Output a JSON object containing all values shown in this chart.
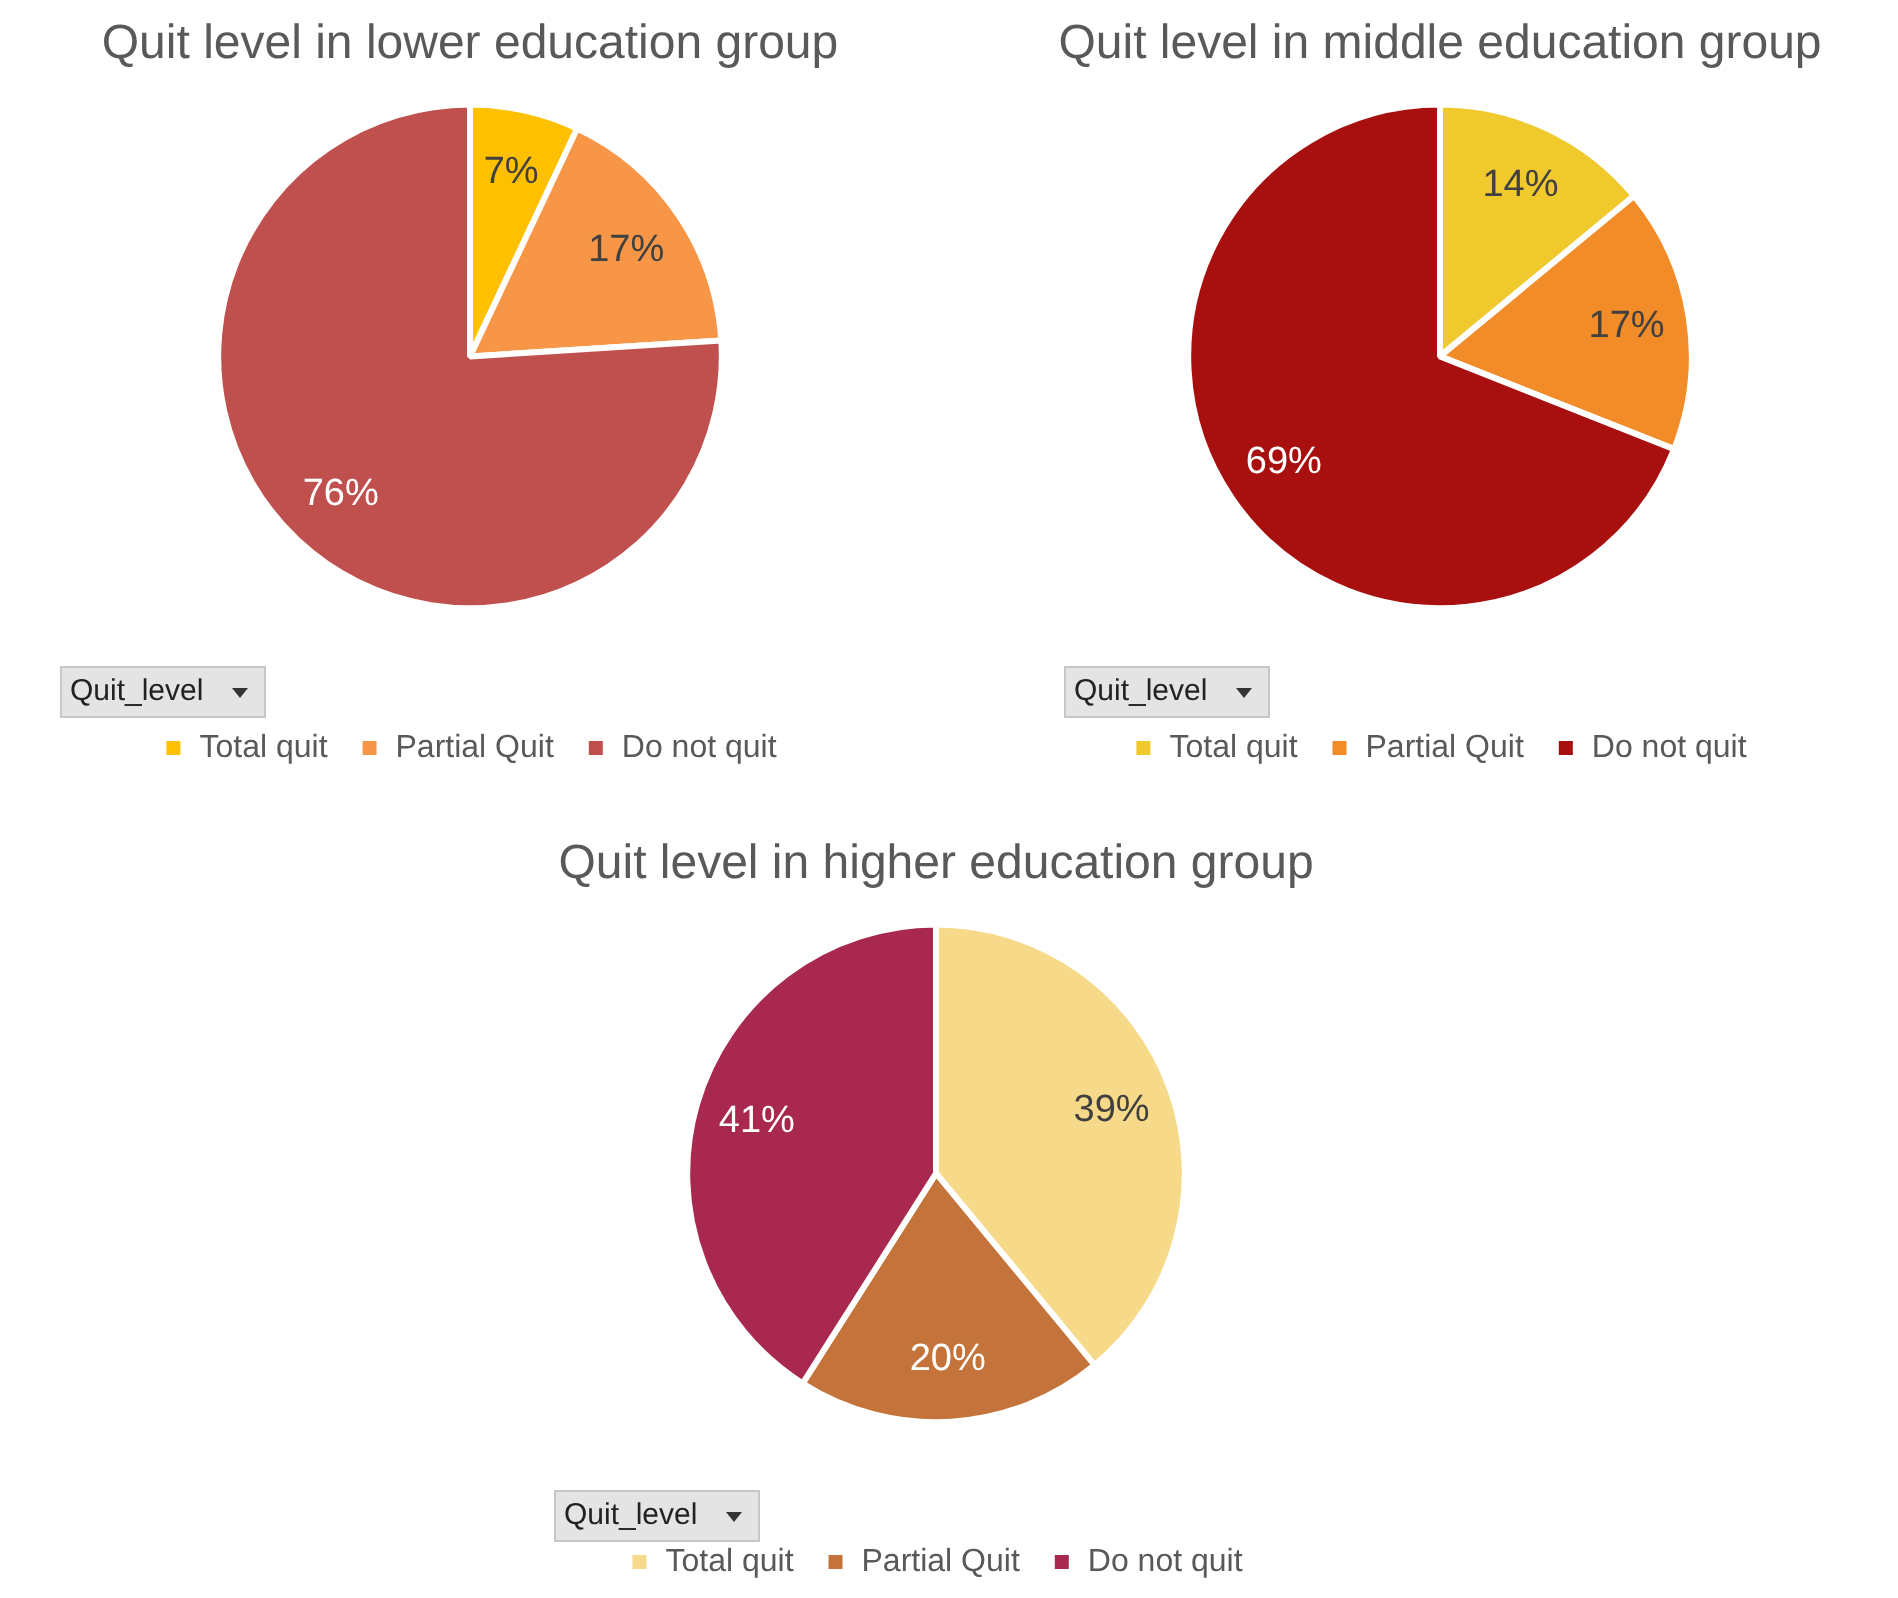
{
  "chart_data": [
    {
      "type": "pie",
      "title": "Quit level in lower education group",
      "categories": [
        "Total quit",
        "Partial Quit",
        "Do not quit"
      ],
      "values": [
        7,
        17,
        76
      ],
      "value_labels": [
        "7%",
        "17%",
        "76%"
      ],
      "colors": [
        "#ffc000",
        "#f79646",
        "#c0504d"
      ],
      "legend": "bottom",
      "legend_title": "Quit_level"
    },
    {
      "type": "pie",
      "title": "Quit level in middle education group",
      "categories": [
        "Total quit",
        "Partial Quit",
        "Do not quit"
      ],
      "values": [
        14,
        17,
        69
      ],
      "value_labels": [
        "14%",
        "17%",
        "69%"
      ],
      "colors": [
        "#f0c92c",
        "#f28c28",
        "#a80f0f"
      ],
      "legend": "bottom",
      "legend_title": "Quit_level"
    },
    {
      "type": "pie",
      "title": "Quit level in higher education group",
      "categories": [
        "Total quit",
        "Partial Quit",
        "Do not quit"
      ],
      "values": [
        39,
        20,
        41
      ],
      "value_labels": [
        "39%",
        "20%",
        "41%"
      ],
      "colors": [
        "#f7d98a",
        "#c4733a",
        "#a8284f"
      ],
      "legend": "bottom",
      "legend_title": "Quit_level"
    }
  ]
}
